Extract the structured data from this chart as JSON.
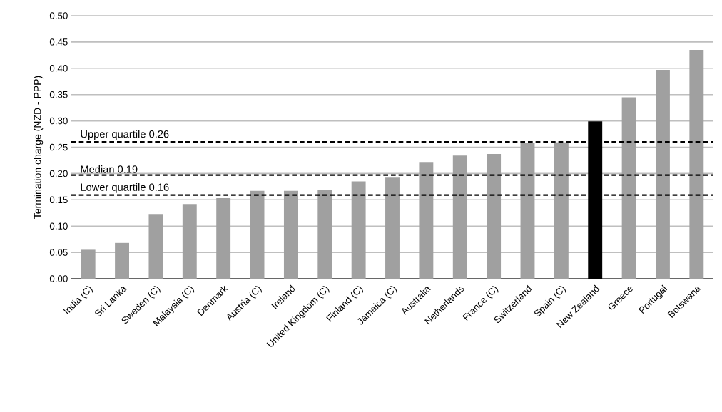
{
  "chart_data": {
    "type": "bar",
    "ylabel": "Termination charge (NZD - PPP)",
    "categories": [
      "India (C)",
      "Sri Lanka",
      "Sweden (C)",
      "Malaysia (C)",
      "Denmark",
      "Austria (C)",
      "Ireland",
      "United Kingdom (C)",
      "Finland (C)",
      "Jamaica (C)",
      "Australia",
      "Netherlands",
      "France (C)",
      "Switzerland",
      "Spain (C)",
      "New Zealand",
      "Greece",
      "Portugal",
      "Botswana"
    ],
    "values": [
      0.055,
      0.068,
      0.123,
      0.142,
      0.153,
      0.167,
      0.167,
      0.169,
      0.185,
      0.192,
      0.222,
      0.234,
      0.237,
      0.258,
      0.259,
      0.299,
      0.345,
      0.397,
      0.435
    ],
    "colors": [
      "#a0a0a0",
      "#a0a0a0",
      "#a0a0a0",
      "#a0a0a0",
      "#a0a0a0",
      "#a0a0a0",
      "#a0a0a0",
      "#a0a0a0",
      "#a0a0a0",
      "#a0a0a0",
      "#a0a0a0",
      "#a0a0a0",
      "#a0a0a0",
      "#a0a0a0",
      "#a0a0a0",
      "#000000",
      "#a0a0a0",
      "#a0a0a0",
      "#a0a0a0"
    ],
    "ylim": [
      0,
      0.5
    ],
    "yticks": [
      {
        "value": 0,
        "label": "0.00"
      },
      {
        "value": 0.05,
        "label": "0.05"
      },
      {
        "value": 0.1,
        "label": "0.10"
      },
      {
        "value": 0.15,
        "label": "0.15"
      },
      {
        "value": 0.2,
        "label": "0.20"
      },
      {
        "value": 0.25,
        "label": "0.25"
      },
      {
        "value": 0.3,
        "label": "0.30"
      },
      {
        "value": 0.35,
        "label": "0.35"
      },
      {
        "value": 0.4,
        "label": "0.40"
      },
      {
        "value": 0.45,
        "label": "0.45"
      },
      {
        "value": 0.5,
        "label": "0.50"
      }
    ],
    "ref_lines": [
      {
        "axis": "y",
        "value": 0.26,
        "label": "Upper quartile 0.26",
        "color": "#000000",
        "line_style": "dashed"
      },
      {
        "axis": "y",
        "value": 0.197,
        "label": "Median 0.19",
        "color": "#000000",
        "line_style": "dashed"
      },
      {
        "axis": "y",
        "value": 0.159,
        "label": "Lower quartile 0.16",
        "color": "#000000",
        "line_style": "dashed"
      }
    ],
    "grid": "y"
  }
}
